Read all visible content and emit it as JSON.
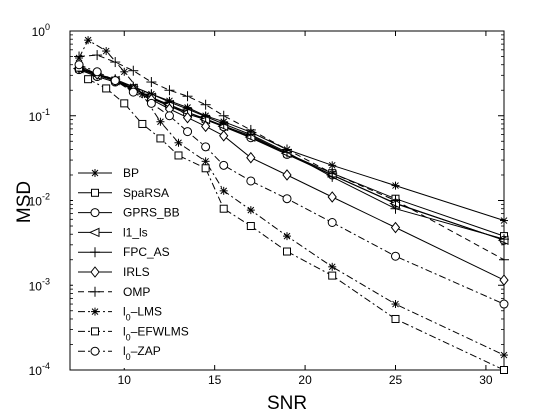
{
  "chart_data": {
    "type": "line",
    "xlabel": "SNR",
    "ylabel": "MSD",
    "xscale": "linear",
    "yscale": "log",
    "xlim": [
      7,
      31
    ],
    "ylim": [
      0.0001,
      1
    ],
    "x_ticks": [
      10,
      15,
      20,
      25,
      30
    ],
    "y_ticks": [
      {
        "value": 0.0001,
        "exp": "-4"
      },
      {
        "value": 0.001,
        "exp": "-3"
      },
      {
        "value": 0.01,
        "exp": "-2"
      },
      {
        "value": 0.1,
        "exp": "-1"
      },
      {
        "value": 1,
        "exp": "0"
      }
    ],
    "tick_base": "10",
    "grid": false,
    "legend_position": "bottom-left",
    "line_color": "#000000",
    "series": [
      {
        "name": "BP",
        "name_parts": [
          {
            "t": "BP"
          }
        ],
        "marker": "star",
        "linestyle": "solid",
        "x": [
          7.5,
          8.5,
          9.5,
          10.5,
          11.5,
          12.5,
          13.5,
          14.5,
          15.5,
          17,
          19,
          21.5,
          25,
          31
        ],
        "y": [
          0.39,
          0.31,
          0.26,
          0.22,
          0.18,
          0.15,
          0.125,
          0.1,
          0.085,
          0.064,
          0.04,
          0.026,
          0.015,
          0.0058
        ]
      },
      {
        "name": "SpaRSA",
        "name_parts": [
          {
            "t": "SpaRSA"
          }
        ],
        "marker": "square",
        "linestyle": "solid",
        "x": [
          7.5,
          8.5,
          9.5,
          10.5,
          11.5,
          12.5,
          13.5,
          14.5,
          15.5,
          17,
          19,
          21.5,
          25,
          31
        ],
        "y": [
          0.36,
          0.3,
          0.26,
          0.21,
          0.16,
          0.13,
          0.11,
          0.092,
          0.076,
          0.058,
          0.036,
          0.021,
          0.0105,
          0.0038
        ]
      },
      {
        "name": "GPRS_BB",
        "name_parts": [
          {
            "t": "GPRS_BB"
          }
        ],
        "marker": "circle",
        "linestyle": "solid",
        "x": [
          7.5,
          8.5,
          9.5,
          10.5,
          11.5,
          12.5,
          13.5,
          14.5,
          15.5,
          17,
          19,
          21.5,
          25,
          31
        ],
        "y": [
          0.35,
          0.29,
          0.25,
          0.21,
          0.165,
          0.13,
          0.105,
          0.09,
          0.074,
          0.055,
          0.035,
          0.02,
          0.0093,
          0.0034
        ]
      },
      {
        "name": "l1_ls",
        "name_parts": [
          {
            "t": "l1_ls"
          }
        ],
        "marker": "triangle-left",
        "linestyle": "solid",
        "x": [
          7.5,
          8.5,
          9.5,
          10.5,
          11.5,
          12.5,
          13.5,
          14.5,
          15.5,
          17,
          19,
          21.5,
          25,
          31
        ],
        "y": [
          0.36,
          0.3,
          0.26,
          0.21,
          0.165,
          0.135,
          0.11,
          0.09,
          0.075,
          0.056,
          0.036,
          0.02,
          0.0092,
          0.0034
        ]
      },
      {
        "name": "FPC_AS",
        "name_parts": [
          {
            "t": "FPC_AS"
          }
        ],
        "marker": "plus",
        "linestyle": "solid",
        "x": [
          7.5,
          8.5,
          9.5,
          10.5,
          11.5,
          12.5,
          13.5,
          14.5,
          15.5,
          17,
          19,
          21.5,
          25,
          31
        ],
        "y": [
          0.36,
          0.31,
          0.27,
          0.22,
          0.18,
          0.145,
          0.12,
          0.098,
          0.08,
          0.06,
          0.037,
          0.019,
          0.008,
          0.0035
        ]
      },
      {
        "name": "IRLS",
        "name_parts": [
          {
            "t": "IRLS"
          }
        ],
        "marker": "diamond",
        "linestyle": "solid",
        "x": [
          7.5,
          8.5,
          9.5,
          10.5,
          11.5,
          12.5,
          13.5,
          14.5,
          15.5,
          17,
          19,
          21.5,
          25,
          31
        ],
        "y": [
          0.37,
          0.31,
          0.26,
          0.2,
          0.155,
          0.12,
          0.095,
          0.075,
          0.058,
          0.032,
          0.02,
          0.011,
          0.0048,
          0.00115
        ]
      },
      {
        "name": "OMP",
        "name_parts": [
          {
            "t": "OMP"
          }
        ],
        "marker": "plus",
        "linestyle": "dashed",
        "x": [
          7.5,
          8.5,
          9.5,
          10.5,
          11.5,
          12.5,
          13.5,
          14.5,
          15.5,
          17,
          19,
          21.5,
          25,
          31
        ],
        "y": [
          0.5,
          0.52,
          0.43,
          0.34,
          0.25,
          0.2,
          0.17,
          0.135,
          0.1,
          0.068,
          0.04,
          0.021,
          0.01,
          0.002
        ]
      },
      {
        "name": "l0-LMS",
        "name_parts": [
          {
            "t": "l"
          },
          {
            "t": "0",
            "sub": true
          },
          {
            "t": "–LMS"
          }
        ],
        "marker": "star",
        "linestyle": "dashdot",
        "x": [
          7.5,
          8,
          9,
          10,
          11,
          12,
          13,
          14.5,
          15.5,
          17,
          19,
          21.5,
          25,
          31
        ],
        "y": [
          0.48,
          0.78,
          0.58,
          0.33,
          0.18,
          0.085,
          0.048,
          0.029,
          0.013,
          0.0077,
          0.0038,
          0.00165,
          0.0006,
          0.00015
        ]
      },
      {
        "name": "l0-EFWLMS",
        "name_parts": [
          {
            "t": "l"
          },
          {
            "t": "0",
            "sub": true
          },
          {
            "t": "–EFWLMS"
          }
        ],
        "marker": "square",
        "linestyle": "dashdot",
        "x": [
          7.5,
          8,
          9,
          10,
          11,
          12,
          13,
          14.5,
          15.5,
          17,
          19,
          21.5,
          25,
          31
        ],
        "y": [
          0.37,
          0.27,
          0.21,
          0.14,
          0.08,
          0.054,
          0.034,
          0.024,
          0.008,
          0.005,
          0.0025,
          0.0013,
          0.0004,
          0.0001
        ]
      },
      {
        "name": "l0-ZAP",
        "name_parts": [
          {
            "t": "l"
          },
          {
            "t": "0",
            "sub": true
          },
          {
            "t": "–ZAP"
          }
        ],
        "marker": "circle",
        "linestyle": "dashdot",
        "x": [
          7.5,
          8.5,
          9.5,
          10.5,
          11.5,
          12.5,
          13.5,
          14.5,
          15.5,
          17,
          19,
          21.5,
          25,
          31
        ],
        "y": [
          0.4,
          0.33,
          0.26,
          0.19,
          0.14,
          0.1,
          0.065,
          0.043,
          0.026,
          0.017,
          0.0105,
          0.0055,
          0.0022,
          0.0006
        ]
      }
    ]
  }
}
